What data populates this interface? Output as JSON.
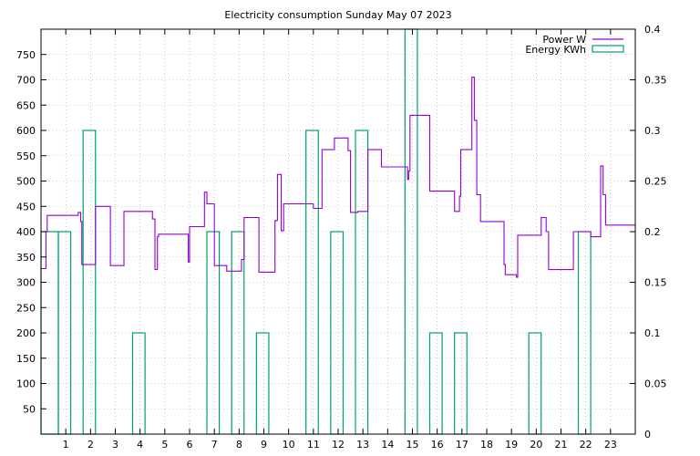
{
  "chart_data": {
    "type": "line",
    "title": "Electricity consumption Sunday May 07 2023",
    "xlabel": "",
    "ylabel": "",
    "y2label": "",
    "xlim": [
      0,
      24
    ],
    "ylim": [
      0,
      800
    ],
    "y2lim": [
      0,
      0.4
    ],
    "x_ticks": [
      1,
      2,
      3,
      4,
      5,
      6,
      7,
      8,
      9,
      10,
      11,
      12,
      13,
      14,
      15,
      16,
      17,
      18,
      19,
      20,
      21,
      22,
      23
    ],
    "y_ticks": [
      50,
      100,
      150,
      200,
      250,
      300,
      350,
      400,
      450,
      500,
      550,
      600,
      650,
      700,
      750
    ],
    "y2_ticks": [
      "0",
      "0.05",
      "0.1",
      "0.15",
      "0.2",
      "0.25",
      "0.3",
      "0.35",
      "0.4"
    ],
    "legend_position": "top-right",
    "colors": {
      "power": "#9400d3",
      "energy": "#009e73"
    },
    "series": [
      {
        "name": "Power W",
        "axis": "left",
        "style": "step-line",
        "x": [
          0.0,
          0.2,
          0.25,
          0.7,
          1.5,
          1.6,
          1.65,
          2.1,
          2.2,
          2.5,
          2.8,
          3.3,
          3.35,
          4.4,
          4.5,
          4.6,
          4.7,
          4.75,
          5.9,
          5.95,
          6.0,
          6.6,
          6.7,
          7.0,
          7.1,
          7.5,
          7.6,
          8.1,
          8.2,
          8.7,
          8.8,
          9.4,
          9.45,
          9.5,
          9.55,
          9.7,
          9.8,
          10.9,
          11.0,
          11.3,
          11.35,
          11.8,
          11.85,
          12.3,
          12.4,
          12.5,
          12.7,
          12.8,
          13.1,
          13.2,
          13.7,
          13.75,
          14.7,
          14.8,
          14.85,
          14.9,
          15.0,
          15.1,
          15.6,
          15.7,
          16.7,
          16.75,
          16.8,
          16.9,
          16.95,
          17.4,
          17.45,
          17.5,
          17.6,
          17.7,
          17.75,
          18.7,
          18.75,
          18.8,
          19.2,
          19.25,
          20.2,
          20.25,
          20.4,
          20.5,
          21.5,
          21.6,
          22.2,
          22.3,
          22.6,
          22.65,
          22.7,
          22.8,
          24.0
        ],
        "y": [
          327,
          400,
          432,
          432,
          438,
          420,
          335,
          335,
          450,
          450,
          333,
          333,
          440,
          440,
          425,
          325,
          390,
          395,
          395,
          340,
          410,
          478,
          455,
          333,
          333,
          322,
          322,
          345,
          428,
          428,
          320,
          320,
          422,
          422,
          513,
          402,
          455,
          455,
          446,
          446,
          562,
          562,
          585,
          585,
          560,
          438,
          438,
          440,
          440,
          562,
          562,
          528,
          528,
          503,
          520,
          630,
          630,
          630,
          630,
          480,
          440,
          440,
          440,
          470,
          562,
          705,
          705,
          620,
          473,
          473,
          420,
          335,
          315,
          315,
          310,
          393,
          428,
          428,
          400,
          325,
          400,
          400,
          390,
          390,
          530,
          530,
          473,
          413,
          413
        ]
      },
      {
        "name": "Energy KWh",
        "axis": "right",
        "style": "bars",
        "bars": [
          {
            "x0": 0.0,
            "x1": 0.7,
            "value": 0.2
          },
          {
            "x0": 0.7,
            "x1": 1.2,
            "value": 0.2
          },
          {
            "x0": 1.7,
            "x1": 2.2,
            "value": 0.3
          },
          {
            "x0": 3.7,
            "x1": 4.2,
            "value": 0.1
          },
          {
            "x0": 6.7,
            "x1": 7.2,
            "value": 0.2
          },
          {
            "x0": 7.7,
            "x1": 8.2,
            "value": 0.2
          },
          {
            "x0": 8.7,
            "x1": 9.2,
            "value": 0.1
          },
          {
            "x0": 10.7,
            "x1": 11.2,
            "value": 0.3
          },
          {
            "x0": 11.7,
            "x1": 12.2,
            "value": 0.2
          },
          {
            "x0": 12.7,
            "x1": 13.2,
            "value": 0.3
          },
          {
            "x0": 14.7,
            "x1": 15.2,
            "value": 0.4
          },
          {
            "x0": 15.7,
            "x1": 16.2,
            "value": 0.1
          },
          {
            "x0": 16.7,
            "x1": 17.2,
            "value": 0.1
          },
          {
            "x0": 19.7,
            "x1": 20.2,
            "value": 0.1
          },
          {
            "x0": 21.7,
            "x1": 22.2,
            "value": 0.2
          }
        ]
      }
    ]
  }
}
